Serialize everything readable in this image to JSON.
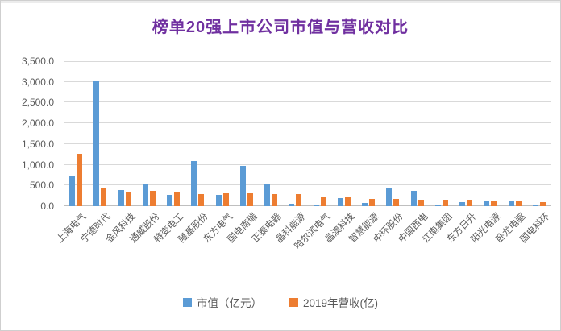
{
  "chart_data": {
    "type": "bar",
    "title": "榜单20强上市公司市值与营收对比",
    "categories": [
      "上海电气",
      "宁德时代",
      "金风科技",
      "通威股份",
      "特变电工",
      "隆基股份",
      "东方电气",
      "国电南瑞",
      "正泰电器",
      "晶科能源",
      "哈尔滨电气",
      "晶澳科技",
      "智慧能源",
      "中环股份",
      "中国西电",
      "江南集团",
      "东方日升",
      "阳光电源",
      "卧龙电驱",
      "国电科环"
    ],
    "series": [
      {
        "name": "市值（亿元）",
        "color": "#5B9BD5",
        "values": [
          710,
          3010,
          390,
          530,
          270,
          1080,
          280,
          970,
          520,
          60,
          25,
          200,
          85,
          430,
          370,
          15,
          95,
          135,
          120,
          10
        ]
      },
      {
        "name": "2019年营收(亿)",
        "color": "#ED7D31",
        "values": [
          1260,
          440,
          355,
          365,
          330,
          295,
          310,
          310,
          290,
          290,
          240,
          210,
          170,
          170,
          150,
          155,
          150,
          120,
          125,
          105
        ]
      }
    ],
    "xlabel": "",
    "ylabel": "",
    "ylim": [
      0,
      3500
    ],
    "ytick_step": 500,
    "ytick_labels": [
      "3,500.0",
      "3,000.0",
      "2,500.0",
      "2,000.0",
      "1,500.0",
      "1,000.0",
      "500.0",
      "0.0"
    ],
    "grid": true,
    "legend_position": "bottom",
    "colors": {
      "title": "#7030A0",
      "axis_text": "#595959",
      "gridline": "#D9D9D9",
      "baseline": "#BFBFBF"
    }
  }
}
